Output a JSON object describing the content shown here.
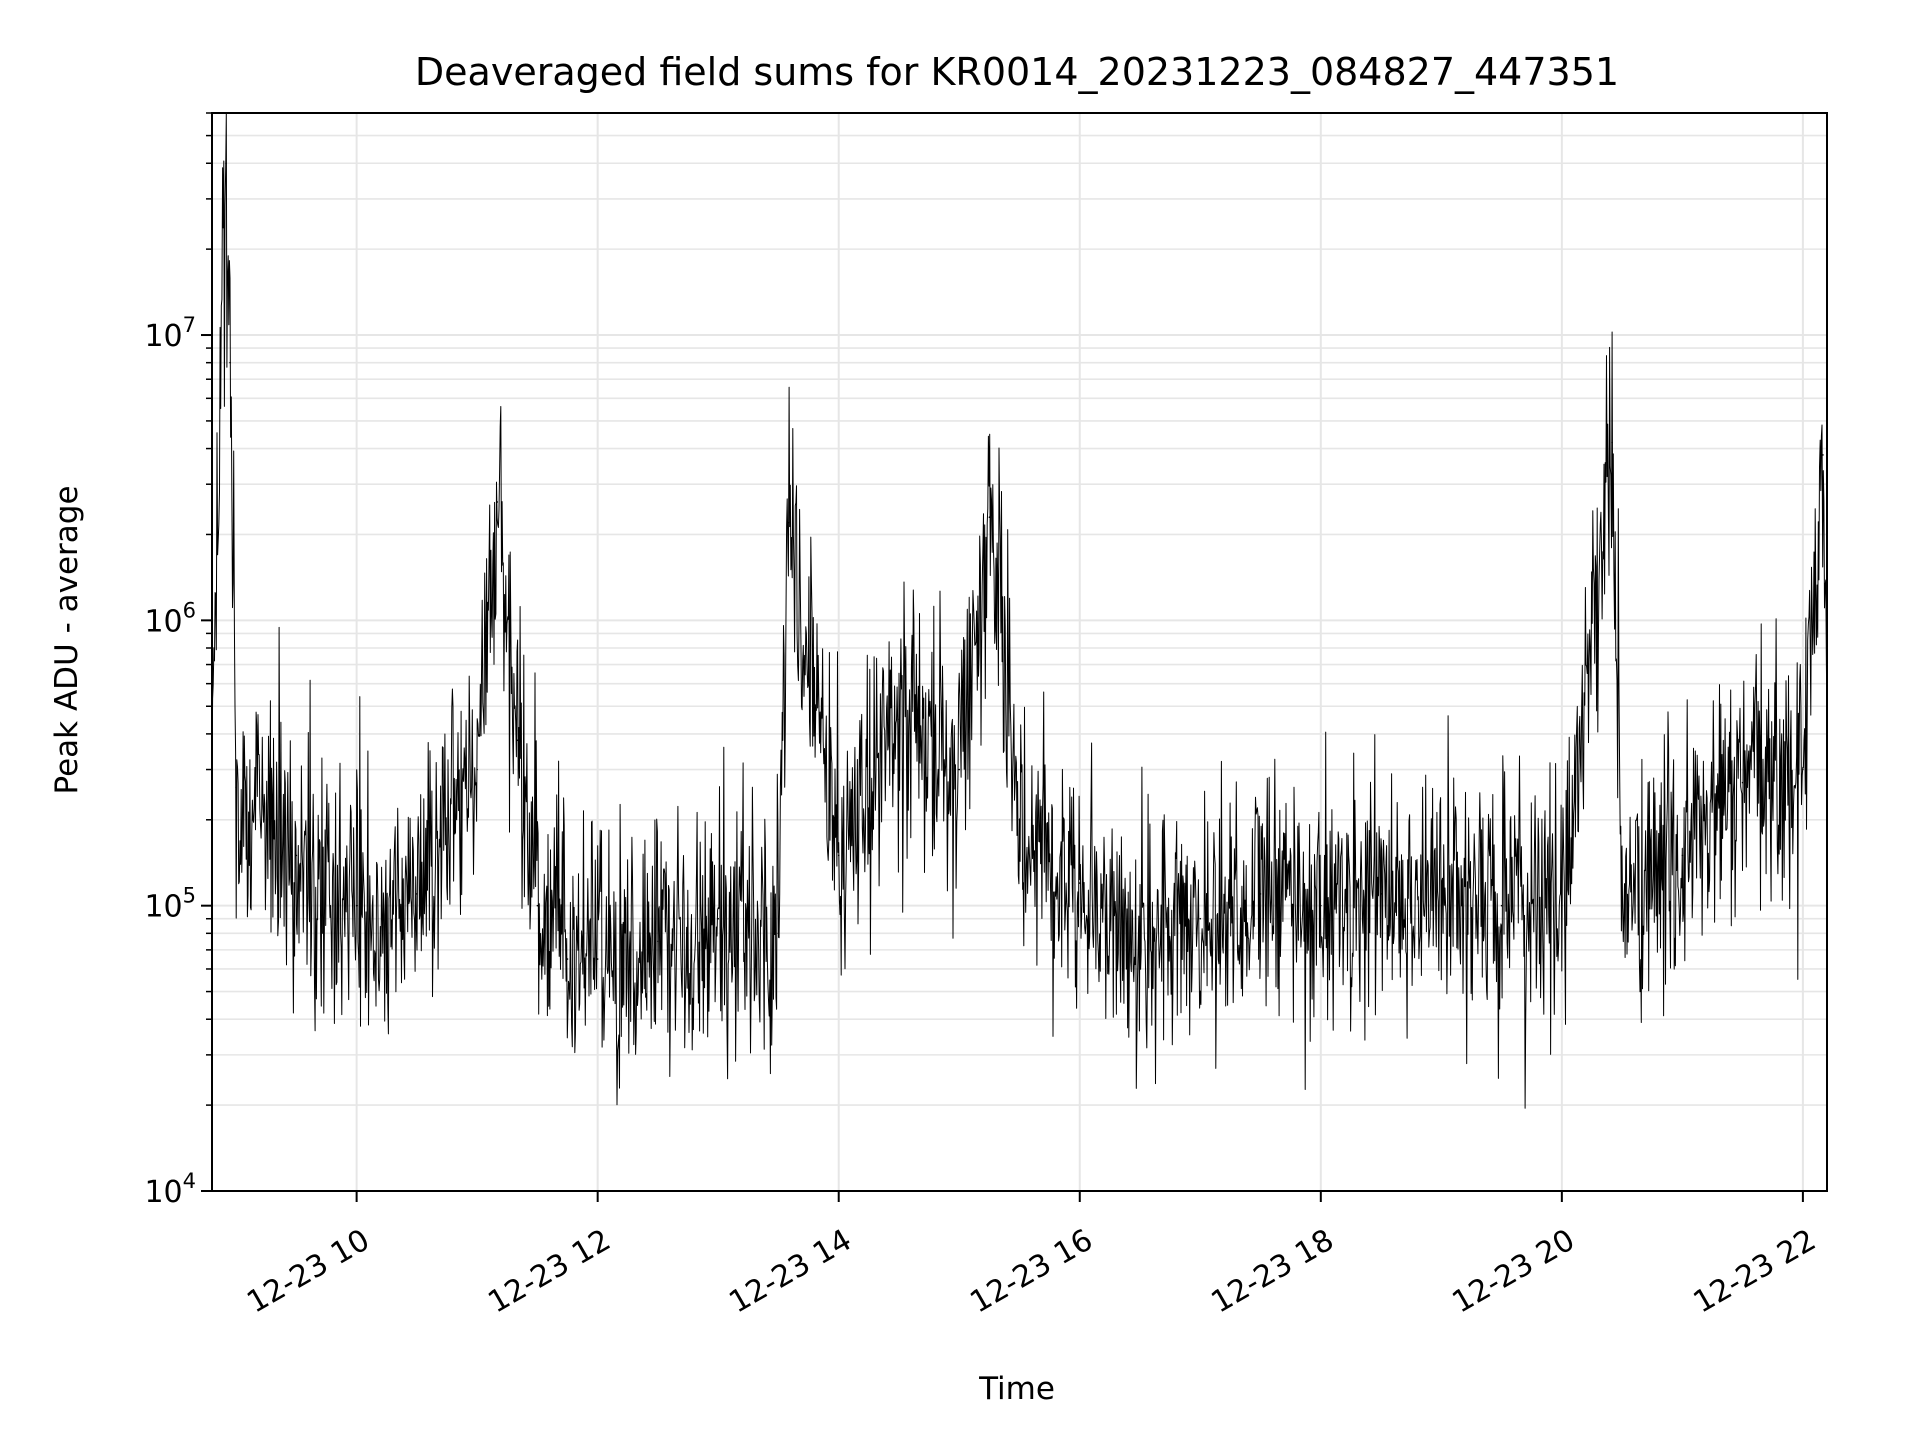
{
  "chart_data": {
    "type": "line",
    "title": "Deaveraged field sums for KR0014_20231223_084827_447351",
    "xlabel": "Time",
    "ylabel": "Peak ADU - average",
    "x_axis": {
      "kind": "datetime",
      "range": [
        "2023-12-23 08:48",
        "2023-12-23 22:12"
      ],
      "ticks": [
        "2023-12-23 10:00",
        "2023-12-23 12:00",
        "2023-12-23 14:00",
        "2023-12-23 16:00",
        "2023-12-23 18:00",
        "2023-12-23 20:00",
        "2023-12-23 22:00"
      ],
      "tick_labels": [
        "12-23 10",
        "12-23 12",
        "12-23 14",
        "12-23 16",
        "12-23 18",
        "12-23 20",
        "12-23 22"
      ],
      "tick_label_rotation_deg": 30
    },
    "y_axis": {
      "scale": "log",
      "ylim": [
        10000,
        60000000
      ],
      "ticks": [
        {
          "value": 10000,
          "base": "10",
          "exp": "4"
        },
        {
          "value": 100000,
          "base": "10",
          "exp": "5"
        },
        {
          "value": 1000000,
          "base": "10",
          "exp": "6"
        },
        {
          "value": 10000000,
          "base": "10",
          "exp": "7"
        }
      ]
    },
    "grid": true,
    "series": [
      {
        "color": "#000000",
        "points": [
          {
            "x": "2023-12-23 08:48",
            "y": 400000
          },
          {
            "x": "2023-12-23 08:55",
            "y": 40000000
          },
          {
            "x": "2023-12-23 08:57",
            "y": 8000000
          },
          {
            "x": "2023-12-23 09:00",
            "y": 260000
          },
          {
            "x": "2023-12-23 09:30",
            "y": 150000
          },
          {
            "x": "2023-12-23 10:00",
            "y": 100000
          },
          {
            "x": "2023-12-23 10:30",
            "y": 110000
          },
          {
            "x": "2023-12-23 11:00",
            "y": 300000
          },
          {
            "x": "2023-12-23 11:10",
            "y": 2600000
          },
          {
            "x": "2023-12-23 11:20",
            "y": 380000
          },
          {
            "x": "2023-12-23 11:30",
            "y": 100000
          },
          {
            "x": "2023-12-23 11:45",
            "y": 65000
          },
          {
            "x": "2023-12-23 12:00",
            "y": 65000
          },
          {
            "x": "2023-12-23 12:30",
            "y": 75000
          },
          {
            "x": "2023-12-23 13:00",
            "y": 90000
          },
          {
            "x": "2023-12-23 13:30",
            "y": 80000
          },
          {
            "x": "2023-12-23 13:35",
            "y": 2200000
          },
          {
            "x": "2023-12-23 14:00",
            "y": 150000
          },
          {
            "x": "2023-12-23 14:30",
            "y": 450000
          },
          {
            "x": "2023-12-23 15:00",
            "y": 300000
          },
          {
            "x": "2023-12-23 15:15",
            "y": 2300000
          },
          {
            "x": "2023-12-23 15:30",
            "y": 200000
          },
          {
            "x": "2023-12-23 16:00",
            "y": 120000
          },
          {
            "x": "2023-12-23 16:30",
            "y": 70000
          },
          {
            "x": "2023-12-23 17:00",
            "y": 90000
          },
          {
            "x": "2023-12-23 17:30",
            "y": 110000
          },
          {
            "x": "2023-12-23 18:00",
            "y": 100000
          },
          {
            "x": "2023-12-23 18:30",
            "y": 110000
          },
          {
            "x": "2023-12-23 19:00",
            "y": 110000
          },
          {
            "x": "2023-12-23 19:30",
            "y": 100000
          },
          {
            "x": "2023-12-23 20:00",
            "y": 100000
          },
          {
            "x": "2023-12-23 20:25",
            "y": 4200000
          },
          {
            "x": "2023-12-23 20:30",
            "y": 100000
          },
          {
            "x": "2023-12-23 21:00",
            "y": 150000
          },
          {
            "x": "2023-12-23 21:30",
            "y": 270000
          },
          {
            "x": "2023-12-23 22:00",
            "y": 300000
          },
          {
            "x": "2023-12-23 22:10",
            "y": 3800000
          },
          {
            "x": "2023-12-23 22:12",
            "y": 550000
          }
        ],
        "noise_envelope_approx": "dense noisy trace; typical excursions of roughly x3 above and below the local level shown by the points"
      }
    ]
  }
}
